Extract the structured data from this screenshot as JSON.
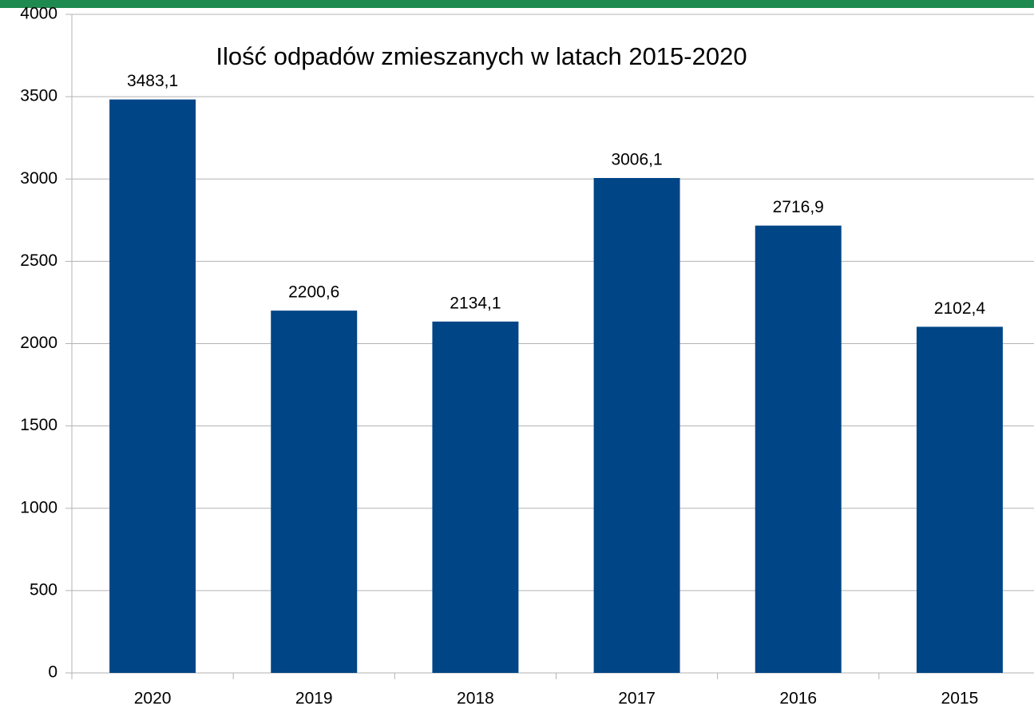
{
  "chart_data": {
    "type": "bar",
    "title": "Ilość odpadów zmieszanych w latach 2015-2020",
    "categories": [
      "2020",
      "2019",
      "2018",
      "2017",
      "2016",
      "2015"
    ],
    "values": [
      3483.1,
      2200.6,
      2134.1,
      3006.1,
      2716.9,
      2102.4
    ],
    "value_labels": [
      "3483,1",
      "2200,6",
      "2134,1",
      "3006,1",
      "2716,9",
      "2102,4"
    ],
    "color": "#004586",
    "ylim": [
      0,
      4000
    ],
    "yticks": [
      0,
      500,
      1000,
      1500,
      2000,
      2500,
      3000,
      3500,
      4000
    ],
    "grid": true
  }
}
